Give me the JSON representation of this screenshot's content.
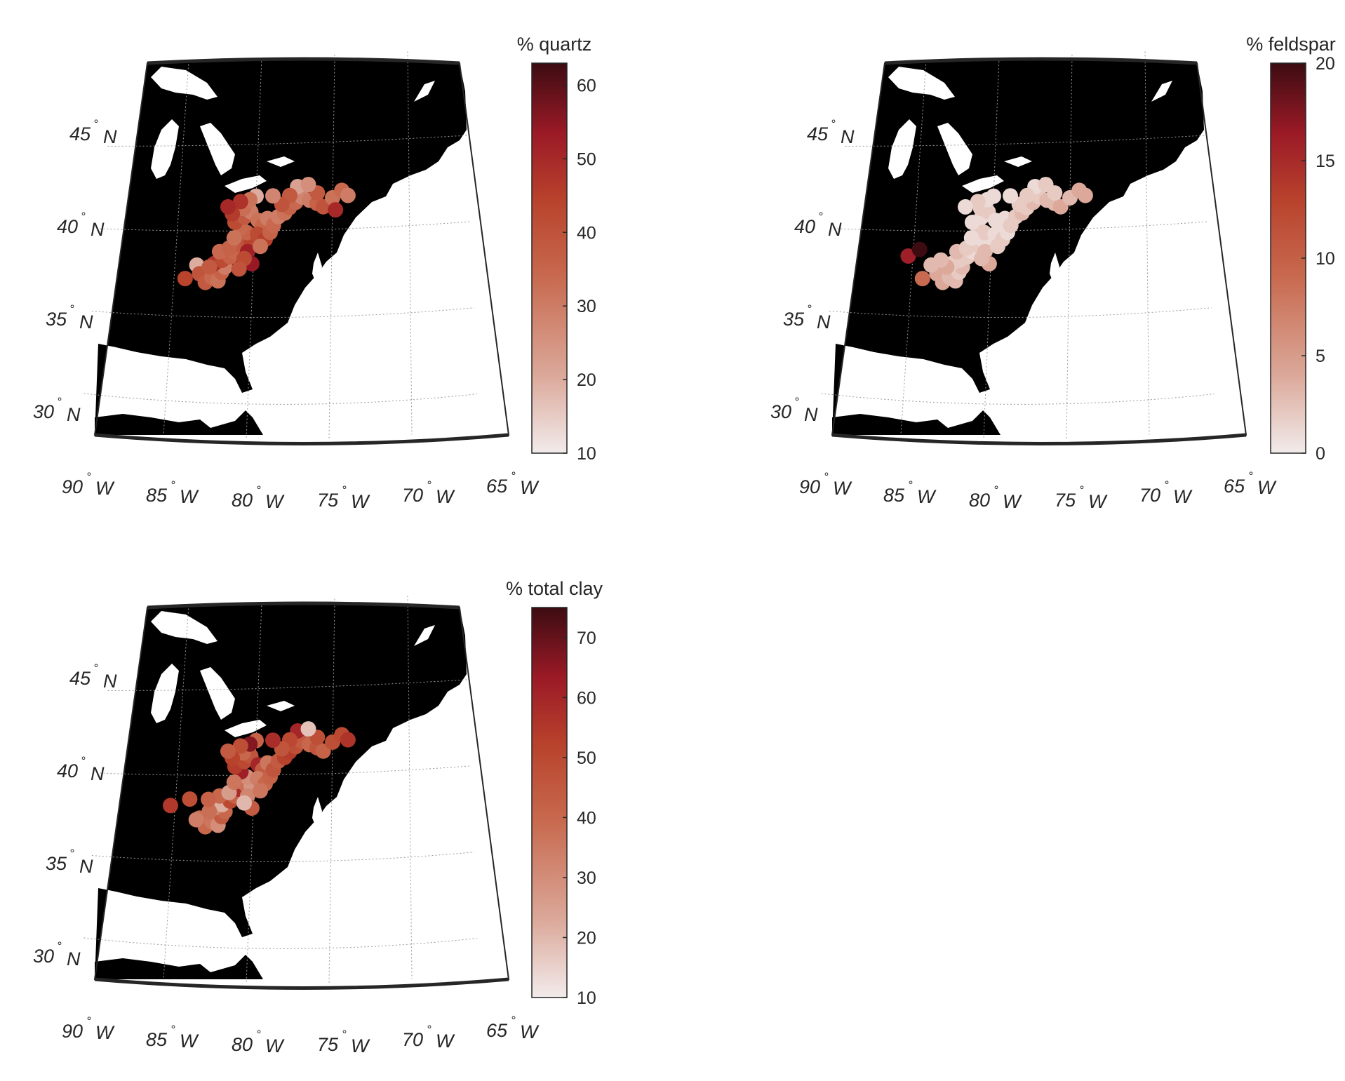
{
  "figure": {
    "lat_labels": [
      "45",
      "40",
      "35",
      "30"
    ],
    "lat_suffix": "N",
    "lon_labels": [
      "90",
      "85",
      "80",
      "75",
      "70",
      "65"
    ],
    "lon_suffix": "W",
    "degree_symbol": "°"
  },
  "colors": {
    "land": "#000000",
    "water": "#ffffff",
    "grid": "#9a9a9a",
    "frame": "#262626",
    "colormap": [
      "#f2ebeb",
      "#dba899",
      "#c86a4f",
      "#b8422c",
      "#9b1a26",
      "#3d0c12"
    ]
  },
  "chart_data": [
    {
      "type": "scatter",
      "title": "% quartz",
      "colorbar_label": "% quartz",
      "colorbar_ticks": [
        "10",
        "20",
        "30",
        "40",
        "50",
        "60"
      ],
      "color_range": [
        10,
        63
      ],
      "points": [
        [
          -83.6,
          38.0,
          20
        ],
        [
          -84.3,
          37.2,
          44
        ],
        [
          -83.4,
          37.5,
          40
        ],
        [
          -83.0,
          37.0,
          38
        ],
        [
          -82.6,
          37.3,
          34
        ],
        [
          -82.2,
          37.1,
          32
        ],
        [
          -82.0,
          37.6,
          36
        ],
        [
          -81.8,
          37.9,
          30
        ],
        [
          -82.5,
          38.1,
          48
        ],
        [
          -82.0,
          38.3,
          42
        ],
        [
          -81.5,
          38.5,
          36
        ],
        [
          -81.2,
          38.8,
          34
        ],
        [
          -81.0,
          39.2,
          38
        ],
        [
          -80.6,
          39.5,
          40
        ],
        [
          -80.2,
          39.4,
          44
        ],
        [
          -80.5,
          39.9,
          36
        ],
        [
          -80.9,
          40.2,
          34
        ],
        [
          -81.3,
          40.5,
          42
        ],
        [
          -80.7,
          40.8,
          38
        ],
        [
          -80.3,
          41.1,
          30
        ],
        [
          -80.8,
          41.3,
          33
        ],
        [
          -81.5,
          41.0,
          46
        ],
        [
          -79.8,
          40.6,
          32
        ],
        [
          -79.5,
          40.3,
          35
        ],
        [
          -79.2,
          40.7,
          30
        ],
        [
          -79.8,
          39.8,
          42
        ],
        [
          -79.3,
          39.5,
          45
        ],
        [
          -79.0,
          39.9,
          36
        ],
        [
          -78.8,
          40.3,
          34
        ],
        [
          -78.5,
          40.8,
          30
        ],
        [
          -78.1,
          41.0,
          32
        ],
        [
          -77.8,
          41.3,
          36
        ],
        [
          -77.4,
          41.6,
          34
        ],
        [
          -77.0,
          41.9,
          28
        ],
        [
          -76.5,
          41.7,
          30
        ],
        [
          -76.0,
          41.5,
          36
        ],
        [
          -75.6,
          41.3,
          40
        ],
        [
          -75.0,
          41.8,
          32
        ],
        [
          -74.4,
          42.2,
          34
        ],
        [
          -74.0,
          41.9,
          30
        ],
        [
          -74.8,
          41.1,
          50
        ],
        [
          -76.0,
          42.1,
          38
        ],
        [
          -77.3,
          42.5,
          22
        ],
        [
          -76.6,
          42.6,
          26
        ],
        [
          -77.8,
          42.0,
          38
        ],
        [
          -78.3,
          41.5,
          40
        ],
        [
          -78.9,
          42.0,
          28
        ],
        [
          -80.0,
          42.0,
          20
        ],
        [
          -80.4,
          41.8,
          32
        ],
        [
          -81.0,
          41.7,
          48
        ],
        [
          -81.8,
          41.4,
          50
        ],
        [
          -82.2,
          38.8,
          34
        ],
        [
          -81.6,
          39.0,
          36
        ],
        [
          -81.3,
          39.6,
          32
        ],
        [
          -82.8,
          37.9,
          38
        ],
        [
          -80.4,
          38.8,
          52
        ],
        [
          -80.1,
          38.1,
          54
        ],
        [
          -80.6,
          38.4,
          42
        ],
        [
          -79.6,
          39.1,
          32
        ],
        [
          -80.9,
          37.8,
          40
        ]
      ]
    },
    {
      "type": "scatter",
      "title": "% feldspar",
      "colorbar_label": "% feldspar",
      "colorbar_ticks": [
        "0",
        "5",
        "10",
        "15",
        "20"
      ],
      "color_range": [
        0,
        20
      ],
      "points": [
        [
          -85.3,
          38.5,
          16
        ],
        [
          -84.6,
          38.9,
          20
        ],
        [
          -84.3,
          37.2,
          9
        ],
        [
          -83.4,
          37.5,
          4
        ],
        [
          -83.0,
          37.0,
          4
        ],
        [
          -82.6,
          37.3,
          3
        ],
        [
          -82.2,
          37.1,
          3
        ],
        [
          -82.0,
          37.6,
          2
        ],
        [
          -81.8,
          37.9,
          3
        ],
        [
          -82.5,
          38.1,
          2
        ],
        [
          -82.0,
          38.3,
          2
        ],
        [
          -81.5,
          38.5,
          2
        ],
        [
          -81.2,
          38.8,
          1
        ],
        [
          -81.0,
          39.2,
          2
        ],
        [
          -80.6,
          39.5,
          1
        ],
        [
          -80.2,
          39.4,
          1
        ],
        [
          -80.5,
          39.9,
          2
        ],
        [
          -80.9,
          40.2,
          2
        ],
        [
          -81.3,
          40.5,
          1
        ],
        [
          -80.7,
          40.8,
          1
        ],
        [
          -80.3,
          41.1,
          2
        ],
        [
          -80.8,
          41.3,
          2
        ],
        [
          -79.8,
          40.6,
          1
        ],
        [
          -79.5,
          40.3,
          1
        ],
        [
          -79.2,
          40.7,
          1
        ],
        [
          -79.8,
          39.8,
          1
        ],
        [
          -79.3,
          39.5,
          2
        ],
        [
          -79.0,
          39.9,
          1
        ],
        [
          -78.8,
          40.3,
          2
        ],
        [
          -78.5,
          40.8,
          2
        ],
        [
          -78.1,
          41.0,
          3
        ],
        [
          -77.8,
          41.3,
          2
        ],
        [
          -77.4,
          41.6,
          3
        ],
        [
          -77.0,
          41.9,
          2
        ],
        [
          -76.5,
          41.7,
          3
        ],
        [
          -76.0,
          41.5,
          3
        ],
        [
          -75.6,
          41.3,
          4
        ],
        [
          -75.0,
          41.8,
          3
        ],
        [
          -74.4,
          42.2,
          4
        ],
        [
          -74.0,
          41.9,
          4
        ],
        [
          -76.0,
          42.1,
          2
        ],
        [
          -77.3,
          42.5,
          1
        ],
        [
          -76.6,
          42.6,
          2
        ],
        [
          -77.8,
          42.0,
          2
        ],
        [
          -78.3,
          41.5,
          2
        ],
        [
          -78.9,
          42.0,
          1
        ],
        [
          -80.0,
          42.0,
          1
        ],
        [
          -80.4,
          41.8,
          1
        ],
        [
          -81.0,
          41.7,
          2
        ],
        [
          -81.8,
          41.4,
          1
        ],
        [
          -82.2,
          38.8,
          3
        ],
        [
          -81.6,
          39.0,
          2
        ],
        [
          -81.3,
          39.6,
          1
        ],
        [
          -82.8,
          37.9,
          4
        ],
        [
          -80.4,
          38.8,
          3
        ],
        [
          -80.1,
          38.1,
          4
        ],
        [
          -80.6,
          38.4,
          3
        ],
        [
          -79.6,
          39.1,
          2
        ],
        [
          -83.8,
          38.0,
          3
        ],
        [
          -83.2,
          38.3,
          3
        ]
      ]
    },
    {
      "type": "scatter",
      "title": "% total clay",
      "colorbar_label": "% total clay",
      "colorbar_ticks": [
        "10",
        "20",
        "30",
        "40",
        "50",
        "60",
        "70"
      ],
      "color_range": [
        10,
        75
      ],
      "points": [
        [
          -85.3,
          38.2,
          55
        ],
        [
          -84.1,
          38.6,
          48
        ],
        [
          -83.4,
          37.5,
          38
        ],
        [
          -83.0,
          37.0,
          40
        ],
        [
          -82.6,
          37.3,
          36
        ],
        [
          -82.2,
          37.1,
          30
        ],
        [
          -82.0,
          37.6,
          44
        ],
        [
          -81.8,
          37.9,
          40
        ],
        [
          -82.5,
          38.1,
          32
        ],
        [
          -82.0,
          38.3,
          22
        ],
        [
          -81.5,
          38.5,
          50
        ],
        [
          -81.2,
          38.8,
          42
        ],
        [
          -81.0,
          39.2,
          58
        ],
        [
          -80.6,
          39.5,
          38
        ],
        [
          -80.2,
          39.4,
          28
        ],
        [
          -80.5,
          39.9,
          30
        ],
        [
          -80.9,
          40.2,
          62
        ],
        [
          -81.3,
          40.5,
          54
        ],
        [
          -80.7,
          40.8,
          50
        ],
        [
          -80.3,
          41.1,
          46
        ],
        [
          -80.8,
          41.3,
          40
        ],
        [
          -81.5,
          41.0,
          52
        ],
        [
          -79.8,
          40.6,
          60
        ],
        [
          -79.5,
          40.3,
          44
        ],
        [
          -79.2,
          40.7,
          36
        ],
        [
          -79.8,
          39.8,
          34
        ],
        [
          -79.3,
          39.5,
          40
        ],
        [
          -79.0,
          39.9,
          42
        ],
        [
          -78.8,
          40.3,
          46
        ],
        [
          -78.5,
          40.8,
          44
        ],
        [
          -78.1,
          41.0,
          52
        ],
        [
          -77.8,
          41.3,
          54
        ],
        [
          -77.4,
          41.6,
          48
        ],
        [
          -77.0,
          41.9,
          44
        ],
        [
          -76.5,
          41.7,
          40
        ],
        [
          -76.0,
          41.5,
          46
        ],
        [
          -75.6,
          41.3,
          42
        ],
        [
          -75.0,
          41.8,
          48
        ],
        [
          -74.4,
          42.2,
          50
        ],
        [
          -74.0,
          41.9,
          56
        ],
        [
          -76.0,
          42.1,
          48
        ],
        [
          -77.3,
          42.5,
          60
        ],
        [
          -76.6,
          42.6,
          18
        ],
        [
          -77.8,
          42.0,
          50
        ],
        [
          -78.3,
          41.5,
          46
        ],
        [
          -78.9,
          42.0,
          58
        ],
        [
          -80.0,
          42.0,
          42
        ],
        [
          -80.4,
          41.8,
          66
        ],
        [
          -81.0,
          41.7,
          48
        ],
        [
          -81.8,
          41.4,
          44
        ],
        [
          -82.2,
          38.8,
          40
        ],
        [
          -81.6,
          39.0,
          26
        ],
        [
          -81.3,
          39.6,
          36
        ],
        [
          -82.8,
          37.9,
          38
        ],
        [
          -80.4,
          38.8,
          32
        ],
        [
          -80.1,
          38.1,
          44
        ],
        [
          -80.6,
          38.4,
          20
        ],
        [
          -79.6,
          39.1,
          36
        ],
        [
          -82.9,
          38.6,
          42
        ],
        [
          -83.6,
          37.4,
          34
        ]
      ]
    }
  ]
}
